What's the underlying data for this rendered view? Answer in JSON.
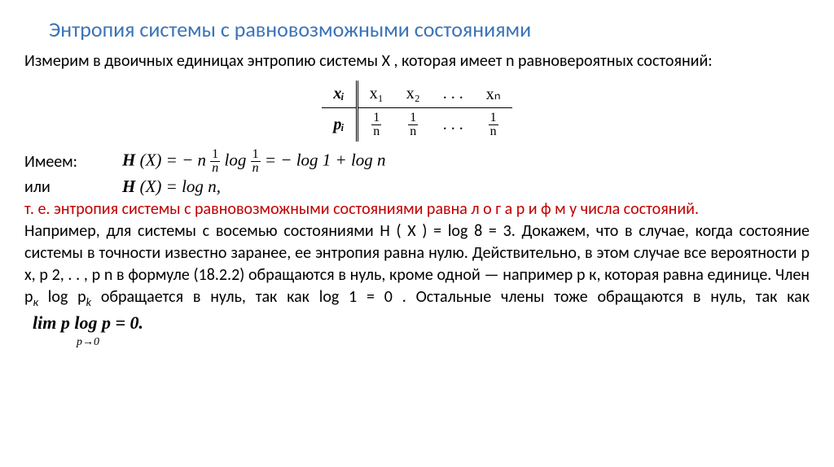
{
  "title": "Энтропия системы с  равновозможными состояниями",
  "intro": "Измерим  в  двоичных  единицах   энтропию  системы   X ,   которая имеет  n равновероятных  состояний:",
  "table": {
    "row_header_1": "xᵢ",
    "row_header_2": "pᵢ",
    "cells_top": [
      "x₁",
      "x₂",
      ". . .",
      "xₙ"
    ],
    "frac_num": "1",
    "frac_den": "n",
    "dots": ". . ."
  },
  "have_label": "Имеем:",
  "formula1": "H (X) = − n ¹⁄ₙ log ¹⁄ₙ = − log 1 + log n",
  "or_label": "или",
  "formula2": "H (X) = log n,",
  "red_line": "т.  е.  энтропия системы с  равновозможными состояниями  равна л о г а р и ф м у числа состояний.",
  "para1_a": "Например, для системы с восемью состояниями H ( X ) = log 8 = 3. Докажем, что в случае, когда состояние  системы  в  точности  известно заранее, ее  энтропия равна  нулю.  Действительно,  в  этом  случае  все  вероятности  p x,  р 2,  . .  ,  р n  в формуле  (18.2.2)   обращаются в  нуль,  кроме  одной —  например   р к,   которая равна  единице.  Член p",
  "para1_sub1": "к",
  "para1_b": " log p",
  "para1_sub2": "k",
  "para1_c": "  обращается  в  нуль,  так как log  1 = 0 .   Остальные члены тоже  обращаются  в  нуль,  так как",
  "lim_top": "lim",
  "lim_bot": "p→0",
  "lim_expr": "p log p = 0."
}
